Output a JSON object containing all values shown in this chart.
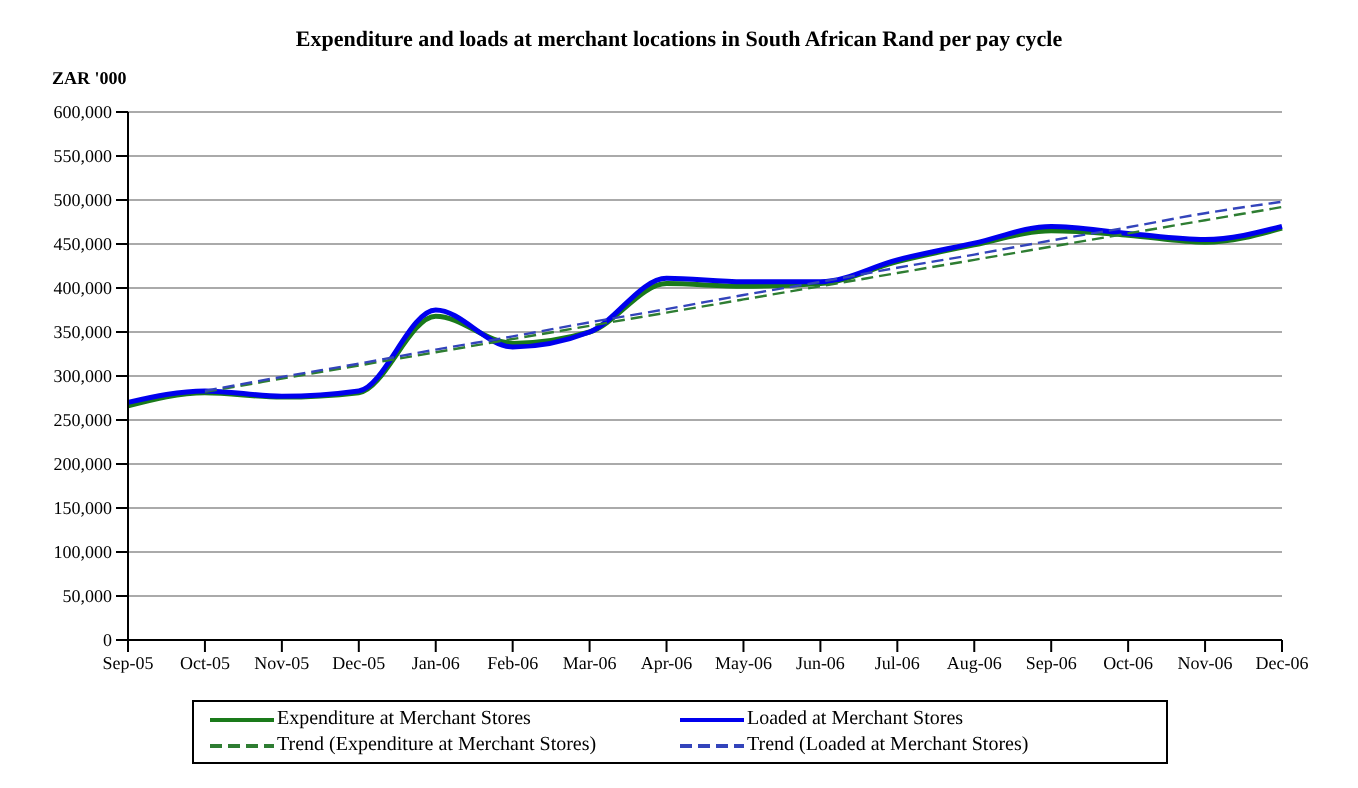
{
  "chart_data": {
    "type": "line",
    "title": "Expenditure and loads at merchant locations in South African Rand per pay cycle",
    "ylabel": "ZAR '000",
    "categories": [
      "Sep-05",
      "Oct-05",
      "Nov-05",
      "Dec-05",
      "Jan-06",
      "Feb-06",
      "Mar-06",
      "Apr-06",
      "May-06",
      "Jun-06",
      "Jul-06",
      "Aug-06",
      "Sep-06",
      "Oct-06",
      "Nov-06",
      "Dec-06"
    ],
    "series": [
      {
        "name": "Expenditure at Merchant Stores",
        "color": "#1a7a1a",
        "line_style": "solid",
        "values": [
          266000,
          281000,
          276000,
          281000,
          368000,
          337000,
          350000,
          405000,
          402000,
          405000,
          430000,
          449000,
          465000,
          460000,
          452000,
          468000
        ]
      },
      {
        "name": "Loaded at Merchant Stores",
        "color": "#0000ee",
        "line_style": "solid",
        "values": [
          270000,
          283000,
          277000,
          283000,
          375000,
          333000,
          350000,
          411000,
          407000,
          407000,
          432000,
          451000,
          470000,
          462000,
          455000,
          470000
        ]
      },
      {
        "name": "Trend (Expenditure at Merchant Stores)",
        "color": "#2e7d32",
        "line_style": "dashed",
        "values": [
          null,
          282000,
          297000,
          312000,
          327000,
          342000,
          357000,
          372000,
          387000,
          402000,
          417000,
          432000,
          447000,
          462000,
          477000,
          492000
        ]
      },
      {
        "name": "Trend (Loaded at Merchant Stores)",
        "color": "#3344bb",
        "line_style": "dashed",
        "values": [
          null,
          283000,
          299000,
          314000,
          330000,
          345000,
          361000,
          376000,
          392000,
          407000,
          423000,
          438000,
          454000,
          469000,
          485000,
          498000
        ]
      }
    ],
    "ylim": [
      0,
      600000
    ],
    "yticks": [
      {
        "value": 0,
        "label": "0"
      },
      {
        "value": 50000,
        "label": "50,000"
      },
      {
        "value": 100000,
        "label": "100,000"
      },
      {
        "value": 150000,
        "label": "150,000"
      },
      {
        "value": 200000,
        "label": "200,000"
      },
      {
        "value": 250000,
        "label": "250,000"
      },
      {
        "value": 300000,
        "label": "300,000"
      },
      {
        "value": 350000,
        "label": "350,000"
      },
      {
        "value": 400000,
        "label": "400,000"
      },
      {
        "value": 450000,
        "label": "450,000"
      },
      {
        "value": 500000,
        "label": "500,000"
      },
      {
        "value": 550000,
        "label": "550,000"
      },
      {
        "value": 600000,
        "label": "600,000"
      }
    ],
    "grid": "y",
    "legend": "bottom",
    "marker": "none"
  }
}
